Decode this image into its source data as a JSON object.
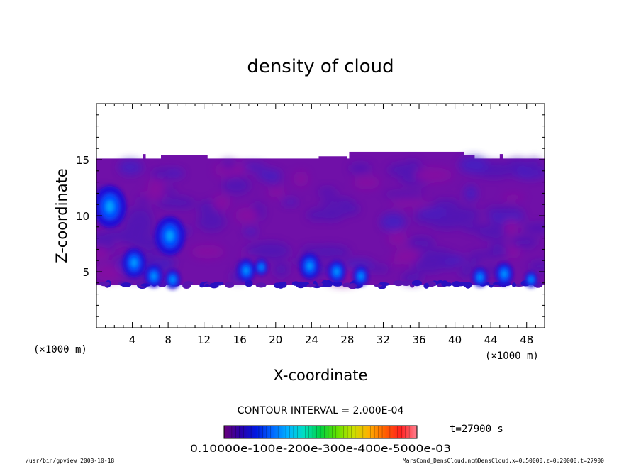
{
  "chart_data": {
    "type": "heatmap",
    "title": "density of cloud",
    "xlabel": "X-coordinate",
    "ylabel": "Z-coordinate",
    "x_unit": "(×1000 m)",
    "y_unit": "(×1000 m)",
    "xlim": [
      0,
      50
    ],
    "ylim": [
      0,
      20
    ],
    "x_ticks": [
      4,
      8,
      12,
      16,
      20,
      24,
      28,
      32,
      36,
      40,
      44,
      48
    ],
    "y_ticks": [
      5,
      10,
      15
    ],
    "contour_interval_text": "CONTOUR INTERVAL = 2.000E-04",
    "time_text": "t=27900 s",
    "colorbar": {
      "tick_labels": [
        "0.1000e-1",
        "0.2000e-3",
        "0.3000e-3",
        "0.4000e-3",
        "0.5000e-3"
      ],
      "overlap_text": "0.10000e-100e-200e-300e-400e-5000e-03",
      "colors": [
        "#6a007a",
        "#2a00a8",
        "#0018e0",
        "#0066ff",
        "#00b4ff",
        "#00e0c0",
        "#00d040",
        "#60e000",
        "#c8e000",
        "#ffb000",
        "#ff6000",
        "#ff2020",
        "#ff8090"
      ]
    },
    "cloud_layer": {
      "z_bottom": 3.8,
      "z_top": 15.1,
      "bumps": [
        {
          "x0": 5.2,
          "x1": 5.5,
          "z": 15.5
        },
        {
          "x0": 7.2,
          "x1": 12.4,
          "z": 15.4
        },
        {
          "x0": 24.8,
          "x1": 28.0,
          "z": 15.3
        },
        {
          "x0": 28.2,
          "x1": 41.0,
          "z": 15.7
        },
        {
          "x0": 41.0,
          "x1": 42.2,
          "z": 15.4
        },
        {
          "x0": 45.0,
          "x1": 45.4,
          "z": 15.5
        }
      ],
      "dense_spots": [
        {
          "x": 4.2,
          "z": 5.8,
          "r": 0.9
        },
        {
          "x": 6.4,
          "z": 4.6,
          "r": 0.7
        },
        {
          "x": 8.5,
          "z": 4.3,
          "r": 0.6
        },
        {
          "x": 16.7,
          "z": 5.1,
          "r": 0.7
        },
        {
          "x": 18.4,
          "z": 5.4,
          "r": 0.5
        },
        {
          "x": 23.8,
          "z": 5.5,
          "r": 0.8
        },
        {
          "x": 26.8,
          "z": 5.0,
          "r": 0.7
        },
        {
          "x": 29.5,
          "z": 4.6,
          "r": 0.6
        },
        {
          "x": 42.8,
          "z": 4.5,
          "r": 0.6
        },
        {
          "x": 45.5,
          "z": 4.8,
          "r": 0.7
        },
        {
          "x": 48.5,
          "z": 4.3,
          "r": 0.5
        },
        {
          "x": 1.5,
          "z": 10.8,
          "r": 1.3
        },
        {
          "x": 8.2,
          "z": 8.2,
          "r": 1.2
        }
      ]
    }
  },
  "footer": {
    "left": "/usr/bin/gpview   2008-10-18",
    "right": "MarsCond_DensCloud.nc@DensCloud,x=0:50000,z=0:20000,t=27900"
  }
}
